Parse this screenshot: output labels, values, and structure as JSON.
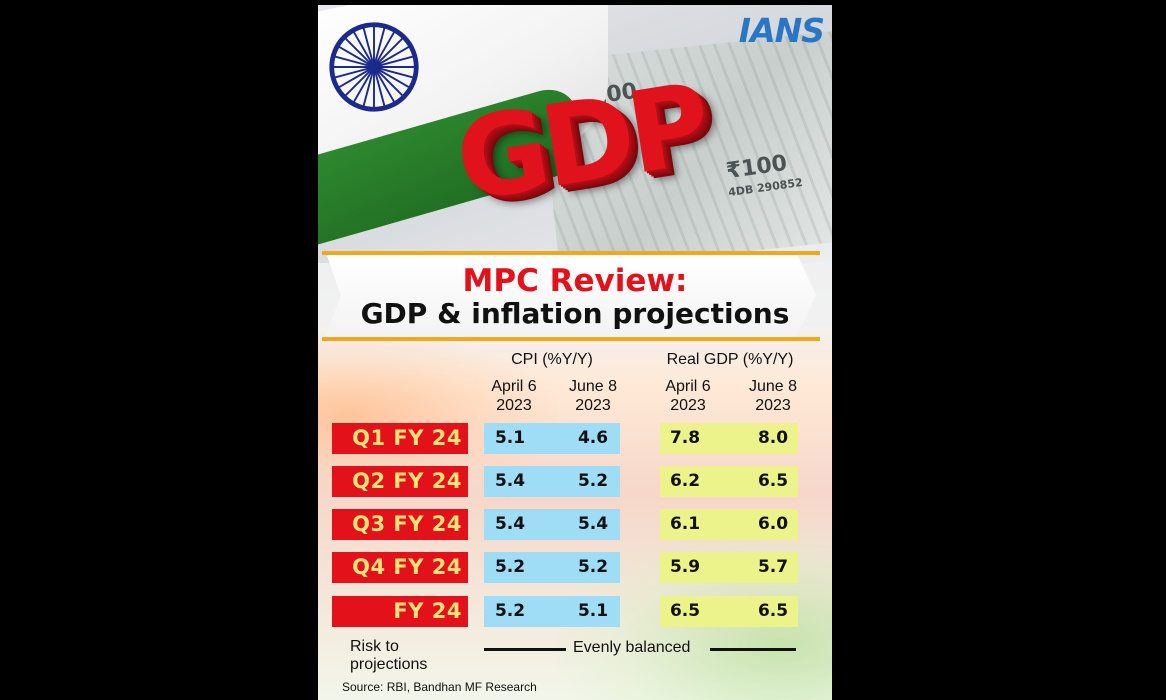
{
  "logo": "IANS",
  "hero": {
    "word": "GDP",
    "note_text_1": "₹100",
    "note_text_2": "₹100",
    "note_serial": "4DB 290852"
  },
  "banner": {
    "title": "MPC Review:",
    "subtitle": "GDP & inflation projections"
  },
  "table": {
    "groups": {
      "cpi": "CPI (%Y/Y)",
      "gdp": "Real GDP (%Y/Y)"
    },
    "columns": [
      {
        "line1": "April 6",
        "line2": "2023"
      },
      {
        "line1": "June 8",
        "line2": "2023"
      },
      {
        "line1": "April 6",
        "line2": "2023"
      },
      {
        "line1": "June 8",
        "line2": "2023"
      }
    ],
    "rows": [
      {
        "label": "Q1 FY 24",
        "cpi_apr": "5.1",
        "cpi_jun": "4.6",
        "gdp_apr": "7.8",
        "gdp_jun": "8.0"
      },
      {
        "label": "Q2 FY 24",
        "cpi_apr": "5.4",
        "cpi_jun": "5.2",
        "gdp_apr": "6.2",
        "gdp_jun": "6.5"
      },
      {
        "label": "Q3 FY 24",
        "cpi_apr": "5.4",
        "cpi_jun": "5.4",
        "gdp_apr": "6.1",
        "gdp_jun": "6.0"
      },
      {
        "label": "Q4 FY 24",
        "cpi_apr": "5.2",
        "cpi_jun": "5.2",
        "gdp_apr": "5.9",
        "gdp_jun": "5.7"
      },
      {
        "label": "FY 24",
        "cpi_apr": "5.2",
        "cpi_jun": "5.1",
        "gdp_apr": "6.5",
        "gdp_jun": "6.5"
      }
    ]
  },
  "footer": {
    "risk_line1": "Risk to",
    "risk_line2": "projections",
    "risk_value": "Evenly balanced",
    "source": "Source: RBI, Bandhan MF Research"
  },
  "colors": {
    "red": "#e3121a",
    "label_text": "#ffe27a",
    "cpi_fill": "#9fdcf6",
    "gdp_fill": "#ecf38a",
    "banner_rule": "#f0a81c",
    "logo_blue": "#2a76c6"
  }
}
